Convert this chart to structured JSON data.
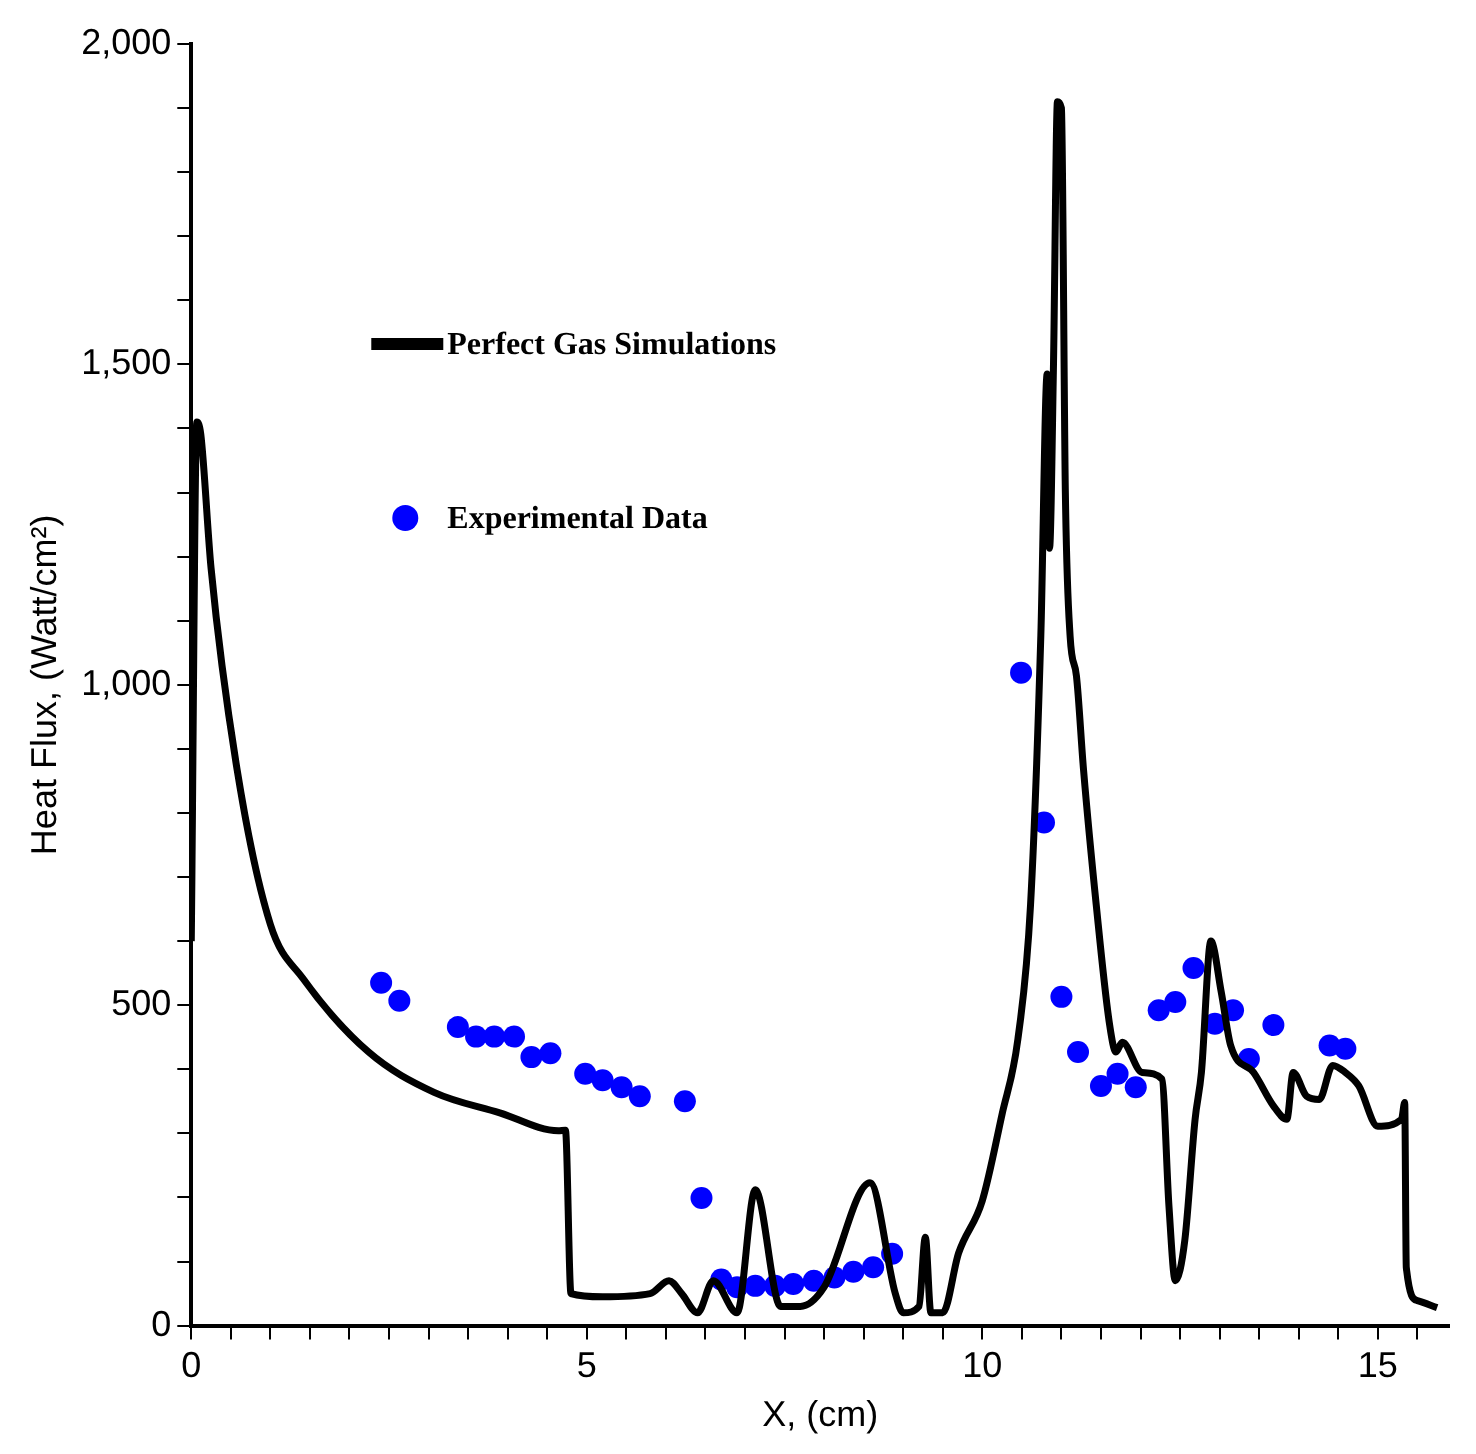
{
  "chart_data": {
    "type": "line",
    "xlabel": "X, (cm)",
    "ylabel": "Heat Flux, (Watt/cm²)",
    "xlim": [
      0,
      15.9
    ],
    "ylim": [
      0,
      2000
    ],
    "xticks": [
      0,
      {
        "value": 0.5,
        "label": null
      },
      {
        "value": 1,
        "label": null
      },
      {
        "value": 1.5,
        "label": null
      },
      {
        "value": 2,
        "label": null
      },
      {
        "value": 2.5,
        "label": null
      },
      {
        "value": 3,
        "label": null
      },
      {
        "value": 3.5,
        "label": null
      },
      {
        "value": 4,
        "label": null
      },
      {
        "value": 4.5,
        "label": null
      },
      5,
      {
        "value": 5.5,
        "label": null
      },
      {
        "value": 6,
        "label": null
      },
      {
        "value": 6.5,
        "label": null
      },
      {
        "value": 7,
        "label": null
      },
      {
        "value": 7.5,
        "label": null
      },
      {
        "value": 8,
        "label": null
      },
      {
        "value": 8.5,
        "label": null
      },
      {
        "value": 9,
        "label": null
      },
      {
        "value": 9.5,
        "label": null
      },
      10,
      {
        "value": 10.5,
        "label": null
      },
      {
        "value": 11,
        "label": null
      },
      {
        "value": 11.5,
        "label": null
      },
      {
        "value": 12,
        "label": null
      },
      {
        "value": 12.5,
        "label": null
      },
      {
        "value": 13,
        "label": null
      },
      {
        "value": 13.5,
        "label": null
      },
      {
        "value": 14,
        "label": null
      },
      {
        "value": 14.5,
        "label": null
      },
      15,
      {
        "value": 15.5,
        "label": null
      }
    ],
    "yticks": [
      {
        "value": 0,
        "label": "0"
      },
      {
        "value": 100,
        "label": null
      },
      {
        "value": 200,
        "label": null
      },
      {
        "value": 300,
        "label": null
      },
      {
        "value": 400,
        "label": null
      },
      {
        "value": 500,
        "label": "500"
      },
      {
        "value": 600,
        "label": null
      },
      {
        "value": 700,
        "label": null
      },
      {
        "value": 800,
        "label": null
      },
      {
        "value": 900,
        "label": null
      },
      {
        "value": 1000,
        "label": "1,000"
      },
      {
        "value": 1100,
        "label": null
      },
      {
        "value": 1200,
        "label": null
      },
      {
        "value": 1300,
        "label": null
      },
      {
        "value": 1400,
        "label": null
      },
      {
        "value": 1500,
        "label": "1,500"
      },
      {
        "value": 1600,
        "label": null
      },
      {
        "value": 1700,
        "label": null
      },
      {
        "value": 1800,
        "label": null
      },
      {
        "value": 1900,
        "label": null
      },
      {
        "value": 2000,
        "label": "2,000"
      }
    ],
    "grid": false,
    "legend": "top left",
    "series": [
      {
        "name": "Perfect Gas Simulations",
        "color": "#000000",
        "marker": "none",
        "line_style": "solid",
        "x": [
          0,
          0.07,
          0.12,
          0.25,
          0.58,
          1.0,
          1.41,
          2.24,
          3.07,
          3.9,
          4.64,
          4.73,
          4.8,
          5.2,
          5.8,
          6.04,
          6.2,
          6.4,
          6.6,
          6.9,
          7.13,
          7.45,
          7.7,
          8.0,
          8.58,
          8.9,
          9.0,
          9.2,
          9.28,
          9.35,
          9.5,
          9.7,
          10.0,
          10.25,
          10.45,
          10.61,
          10.74,
          10.82,
          10.85,
          10.9,
          10.95,
          11.0,
          11.05,
          11.11,
          11.19,
          11.28,
          11.44,
          11.61,
          11.69,
          11.77,
          12.02,
          12.27,
          12.36,
          12.44,
          12.56,
          12.69,
          12.77,
          12.89,
          13.02,
          13.14,
          13.43,
          13.68,
          13.85,
          13.93,
          14.1,
          14.26,
          14.43,
          14.59,
          14.76,
          15.0,
          15.3,
          15.34,
          15.36,
          15.5,
          15.75
        ],
        "values": [
          600,
          1410,
          1391,
          1182,
          867,
          626,
          542,
          427,
          364,
          332,
          304,
          305,
          50,
          45,
          50,
          70,
          50,
          20,
          70,
          20,
          212,
          30,
          30,
          60,
          223,
          50,
          20,
          30,
          138,
          20,
          20,
          113,
          195,
          330,
          447,
          657,
          1077,
          1485,
          1213,
          1500,
          1910,
          1900,
          1300,
          1076,
          1014,
          867,
          657,
          469,
          427,
          442,
          395,
          385,
          186,
          70,
          133,
          322,
          395,
          600,
          521,
          437,
          395,
          343,
          322,
          395,
          358,
          353,
          406,
          395,
          374,
          311,
          322,
          348,
          91,
          39,
          28
        ]
      },
      {
        "name": "Experimental Data",
        "type": "scatter",
        "color": "#0000ff",
        "marker": "circle",
        "x": [
          2.4,
          2.63,
          3.37,
          3.6,
          3.83,
          4.08,
          4.3,
          4.54,
          4.98,
          5.2,
          5.44,
          5.67,
          6.24,
          6.45,
          6.7,
          6.9,
          7.13,
          7.38,
          7.61,
          7.87,
          8.13,
          8.37,
          8.62,
          8.86,
          10.49,
          10.78,
          11.0,
          11.21,
          11.5,
          11.71,
          11.94,
          12.23,
          12.44,
          12.67,
          12.94,
          13.17,
          13.37,
          13.68,
          14.39,
          14.59
        ],
        "values": [
          535,
          507,
          466,
          451,
          451,
          451,
          419,
          425,
          393,
          383,
          372,
          358,
          350,
          199,
          72,
          60,
          62,
          62,
          65,
          70,
          75,
          84,
          91,
          112,
          1019,
          785,
          513,
          427,
          374,
          393,
          372,
          492,
          505,
          558,
          471,
          492,
          416,
          469,
          437,
          432
        ]
      }
    ]
  }
}
